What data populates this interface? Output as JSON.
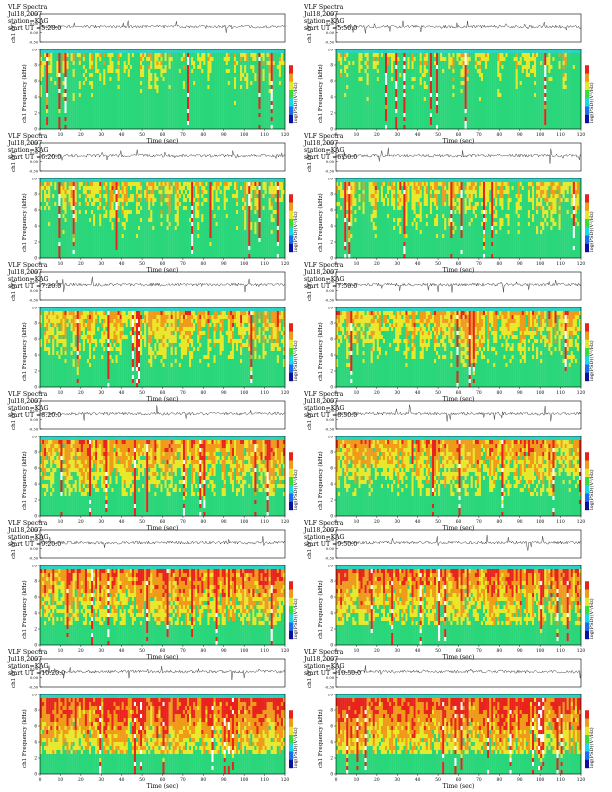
{
  "page": {
    "size_note": "letter"
  },
  "colorbar_label": "log(PSD)(V²/Hz)",
  "freq_ylabel": "ch1 Frequency (kHz)",
  "wave_ylabel": "ch1 (V)",
  "xlabel": "Time (sec)",
  "title_prefix": "VLF Spectra",
  "date": "Jul18,2007",
  "station": "station=KAG",
  "colors": {
    "spectro_low": "#2ad67a",
    "spectro_mid": "#e8e82a",
    "spectro_high": "#e8231e",
    "spectro_top": "#29d3c0",
    "cbar": [
      "#0a10a0",
      "#1a6df0",
      "#1ad6e6",
      "#3adc3a",
      "#e6e62a",
      "#f09a1a",
      "#e6211e",
      "#ffffff"
    ]
  },
  "chart_data": [
    {
      "type": "heatmap",
      "title": "VLF Spectra",
      "date": "Jul18,2007",
      "station": "station=KAG",
      "start_label": "start UT =5:20:0",
      "xlabel": "Time (sec)",
      "ylabel": "Frequency (kHz)",
      "xlim": [
        0,
        120
      ],
      "ylim": [
        0,
        10
      ],
      "xticks": [
        0,
        10,
        20,
        30,
        40,
        50,
        60,
        70,
        80,
        90,
        100,
        110,
        120
      ],
      "yticks": [
        0,
        2,
        4,
        6,
        8,
        10
      ],
      "wave_ylim": [
        -0.3,
        0.2
      ],
      "colorbar_label": "log(PSD)(V²/Hz)"
    },
    {
      "type": "heatmap",
      "title": "VLF Spectra",
      "date": "Jul18,2007",
      "station": "station=KAG",
      "start_label": "start UT =5:50:0",
      "xlabel": "Time (sec)",
      "ylabel": "Frequency (kHz)",
      "xlim": [
        0,
        120
      ],
      "ylim": [
        0,
        10
      ],
      "xticks": [
        0,
        10,
        20,
        30,
        40,
        50,
        60,
        70,
        80,
        90,
        100,
        110,
        120
      ],
      "yticks": [
        0,
        2,
        4,
        6,
        8,
        10
      ],
      "wave_ylim": [
        -0.3,
        0.2
      ],
      "colorbar_label": "log(PSD)(V²/Hz)"
    },
    {
      "type": "heatmap",
      "title": "VLF Spectra",
      "date": "Jul18,2007",
      "station": "station=KAG",
      "start_label": "start UT =6:20:0",
      "xlabel": "Time (sec)",
      "ylabel": "Frequency (kHz)",
      "xlim": [
        0,
        120
      ],
      "ylim": [
        0,
        10
      ],
      "xticks": [
        0,
        10,
        20,
        30,
        40,
        50,
        60,
        70,
        80,
        90,
        100,
        110,
        120
      ],
      "yticks": [
        0,
        2,
        4,
        6,
        8,
        10
      ],
      "wave_ylim": [
        -0.3,
        0.2
      ],
      "colorbar_label": "log(PSD)(V²/Hz)"
    },
    {
      "type": "heatmap",
      "title": "VLF Spectra",
      "date": "Jul18,2007",
      "station": "station=KAG",
      "start_label": "start UT =6:50:0",
      "xlabel": "Time (sec)",
      "ylabel": "Frequency (kHz)",
      "xlim": [
        0,
        120
      ],
      "ylim": [
        0,
        10
      ],
      "xticks": [
        0,
        10,
        20,
        30,
        40,
        50,
        60,
        70,
        80,
        90,
        100,
        110,
        120
      ],
      "yticks": [
        0,
        2,
        4,
        6,
        8,
        10
      ],
      "wave_ylim": [
        -0.3,
        0.2
      ],
      "colorbar_label": "log(PSD)(V²/Hz)"
    },
    {
      "type": "heatmap",
      "title": "VLF Spectra",
      "date": "Jul18,2007",
      "station": "station=KAG",
      "start_label": "start UT =7:20:0",
      "xlabel": "Time (sec)",
      "ylabel": "Frequency (kHz)",
      "xlim": [
        0,
        120
      ],
      "ylim": [
        0,
        10
      ],
      "xticks": [
        0,
        10,
        20,
        30,
        40,
        50,
        60,
        70,
        80,
        90,
        100,
        110,
        120
      ],
      "yticks": [
        0,
        2,
        4,
        6,
        8,
        10
      ],
      "wave_ylim": [
        -0.3,
        0.2
      ],
      "colorbar_label": "log(PSD)(V²/Hz)"
    },
    {
      "type": "heatmap",
      "title": "VLF Spectra",
      "date": "Jul18,2007",
      "station": "station=KAG",
      "start_label": "start UT =7:50:0",
      "xlabel": "Time (sec)",
      "ylabel": "Frequency (kHz)",
      "xlim": [
        0,
        120
      ],
      "ylim": [
        0,
        10
      ],
      "xticks": [
        0,
        10,
        20,
        30,
        40,
        50,
        60,
        70,
        80,
        90,
        100,
        110,
        120
      ],
      "yticks": [
        0,
        2,
        4,
        6,
        8,
        10
      ],
      "wave_ylim": [
        -0.3,
        0.2
      ],
      "colorbar_label": "log(PSD)(V²/Hz)"
    },
    {
      "type": "heatmap",
      "title": "VLF Spectra",
      "date": "Jul18,2007",
      "station": "station=KAG",
      "start_label": "start UT =8:20:0",
      "xlabel": "Time (sec)",
      "ylabel": "Frequency (kHz)",
      "xlim": [
        0,
        120
      ],
      "ylim": [
        0,
        10
      ],
      "xticks": [
        0,
        10,
        20,
        30,
        40,
        50,
        60,
        70,
        80,
        90,
        100,
        110,
        120
      ],
      "yticks": [
        0,
        2,
        4,
        6,
        8,
        10
      ],
      "wave_ylim": [
        -0.3,
        0.2
      ],
      "colorbar_label": "log(PSD)(V²/Hz)"
    },
    {
      "type": "heatmap",
      "title": "VLF Spectra",
      "date": "Jul18,2007",
      "station": "station=KAG",
      "start_label": "start UT =8:50:0",
      "xlabel": "Time (sec)",
      "ylabel": "Frequency (kHz)",
      "xlim": [
        0,
        120
      ],
      "ylim": [
        0,
        10
      ],
      "xticks": [
        0,
        10,
        20,
        30,
        40,
        50,
        60,
        70,
        80,
        90,
        100,
        110,
        120
      ],
      "yticks": [
        0,
        2,
        4,
        6,
        8,
        10
      ],
      "wave_ylim": [
        -0.3,
        0.2
      ],
      "colorbar_label": "log(PSD)(V²/Hz)"
    },
    {
      "type": "heatmap",
      "title": "VLF Spectra",
      "date": "Jul18,2007",
      "station": "station=KAG",
      "start_label": "start UT =9:20:0",
      "xlabel": "Time (sec)",
      "ylabel": "Frequency (kHz)",
      "xlim": [
        0,
        120
      ],
      "ylim": [
        0,
        10
      ],
      "xticks": [
        0,
        10,
        20,
        30,
        40,
        50,
        60,
        70,
        80,
        90,
        100,
        110,
        120
      ],
      "yticks": [
        0,
        2,
        4,
        6,
        8,
        10
      ],
      "wave_ylim": [
        -0.3,
        0.2
      ],
      "colorbar_label": "log(PSD)(V²/Hz)"
    },
    {
      "type": "heatmap",
      "title": "VLF Spectra",
      "date": "Jul18,2007",
      "station": "station=KAG",
      "start_label": "start UT =9:50:0",
      "xlabel": "Time (sec)",
      "ylabel": "Frequency (kHz)",
      "xlim": [
        0,
        120
      ],
      "ylim": [
        0,
        10
      ],
      "xticks": [
        0,
        10,
        20,
        30,
        40,
        50,
        60,
        70,
        80,
        90,
        100,
        110,
        120
      ],
      "yticks": [
        0,
        2,
        4,
        6,
        8,
        10
      ],
      "wave_ylim": [
        -0.3,
        0.2
      ],
      "colorbar_label": "log(PSD)(V²/Hz)"
    },
    {
      "type": "heatmap",
      "title": "VLF Spectra",
      "date": "Jul18,2007",
      "station": "station=KAG",
      "start_label": "start UT =10:20:0",
      "xlabel": "Time (sec)",
      "ylabel": "Frequency (kHz)",
      "xlim": [
        0,
        120
      ],
      "ylim": [
        0,
        10
      ],
      "xticks": [
        0,
        10,
        20,
        30,
        40,
        50,
        60,
        70,
        80,
        90,
        100,
        110,
        120
      ],
      "yticks": [
        0,
        2,
        4,
        6,
        8,
        10
      ],
      "wave_ylim": [
        -0.3,
        0.2
      ],
      "colorbar_label": "log(PSD)(V²/Hz)"
    },
    {
      "type": "heatmap",
      "title": "VLF Spectra",
      "date": "Jul18,2007",
      "station": "station=KAG",
      "start_label": "start UT =10:50:0",
      "xlabel": "Time (sec)",
      "ylabel": "Frequency (kHz)",
      "xlim": [
        0,
        120
      ],
      "ylim": [
        0,
        10
      ],
      "xticks": [
        0,
        10,
        20,
        30,
        40,
        50,
        60,
        70,
        80,
        90,
        100,
        110,
        120
      ],
      "yticks": [
        0,
        2,
        4,
        6,
        8,
        10
      ],
      "wave_ylim": [
        -0.3,
        0.2
      ],
      "colorbar_label": "log(PSD)(V²/Hz)"
    }
  ]
}
